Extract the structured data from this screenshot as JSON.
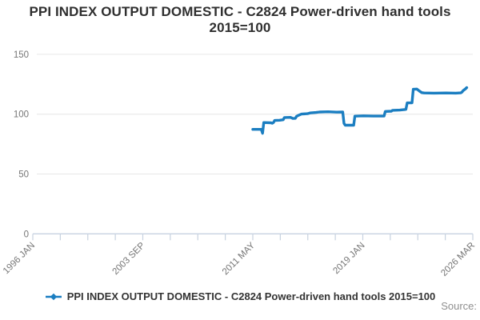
{
  "chart": {
    "title": "PPI INDEX OUTPUT DOMESTIC - C2824 Power-driven hand tools 2015=100",
    "legend_label": "PPI INDEX OUTPUT DOMESTIC - C2824 Power-driven hand tools 2015=100",
    "source_label": "Source:"
  },
  "colors": {
    "series_line": "#1b7ec1",
    "gridline": "#e6e6e6",
    "axis_line": "#c7d2e0",
    "tick_text": "#757575",
    "title_text": "#2f2f2f",
    "source_text": "#8f8f8f"
  },
  "chart_data": {
    "type": "line",
    "title": "PPI INDEX OUTPUT DOMESTIC - C2824 Power-driven hand tools 2015=100",
    "xlabel": "",
    "ylabel": "",
    "grid": "horizontal-only",
    "legend_position": "bottom-center",
    "x_axis": {
      "unit": "months since 1996 JAN",
      "min": 0,
      "max": 362,
      "minor_tick_count": 17,
      "tick_labels": [
        "1996 JAN",
        "2003 SEP",
        "2011 MAY",
        "2019 JAN",
        "2026 MAR"
      ],
      "label_every_nth_tick": 4,
      "label_rotation_deg": -45
    },
    "y_axis": {
      "min": 0,
      "max": 150,
      "ticks": [
        0,
        50,
        100,
        150
      ],
      "gridlines": [
        50,
        100,
        150
      ]
    },
    "series": [
      {
        "name": "PPI INDEX OUTPUT DOMESTIC - C2824 Power-driven hand tools 2015=100",
        "color": "#1b7ec1",
        "points_format": "[months since 1996 JAN, index value]",
        "points": [
          [
            181,
            87.3
          ],
          [
            188,
            87.3
          ],
          [
            189,
            84.0
          ],
          [
            190,
            93.0
          ],
          [
            196,
            92.8
          ],
          [
            197,
            92.4
          ],
          [
            198,
            93.0
          ],
          [
            199,
            94.7
          ],
          [
            203,
            94.9
          ],
          [
            206,
            95.3
          ],
          [
            207,
            97.2
          ],
          [
            212,
            97.3
          ],
          [
            214,
            96.4
          ],
          [
            216,
            96.5
          ],
          [
            217,
            98.2
          ],
          [
            219,
            99.2
          ],
          [
            221,
            100.1
          ],
          [
            226,
            100.4
          ],
          [
            228,
            101.0
          ],
          [
            233,
            101.4
          ],
          [
            236,
            101.8
          ],
          [
            243,
            102.0
          ],
          [
            250,
            101.7
          ],
          [
            255,
            101.8
          ],
          [
            256,
            92.3
          ],
          [
            257,
            90.8
          ],
          [
            264,
            90.8
          ],
          [
            265,
            98.3
          ],
          [
            272,
            98.6
          ],
          [
            280,
            98.4
          ],
          [
            289,
            98.4
          ],
          [
            290,
            102.3
          ],
          [
            295,
            102.5
          ],
          [
            296,
            103.2
          ],
          [
            302,
            103.4
          ],
          [
            306,
            103.9
          ],
          [
            307,
            104.0
          ],
          [
            308,
            109.4
          ],
          [
            312,
            109.5
          ],
          [
            313,
            120.8
          ],
          [
            316,
            121.0
          ],
          [
            318,
            119.4
          ],
          [
            320,
            118.0
          ],
          [
            322,
            117.7
          ],
          [
            330,
            117.6
          ],
          [
            340,
            117.7
          ],
          [
            348,
            117.6
          ],
          [
            352,
            117.8
          ],
          [
            353,
            118.3
          ],
          [
            354,
            119.6
          ],
          [
            356,
            121.2
          ],
          [
            357,
            122.2
          ]
        ]
      }
    ]
  }
}
